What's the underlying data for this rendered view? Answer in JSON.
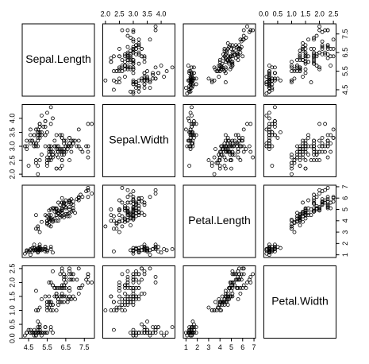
{
  "chart_data": {
    "type": "scatter-matrix",
    "color": "#000000",
    "variables": [
      {
        "name": "Sepal.Length",
        "lim": [
          4.156,
          8.044
        ],
        "ticks": [
          {
            "value": 4.5,
            "label": "4.5"
          },
          {
            "value": 5.5,
            "label": "5.5"
          },
          {
            "value": 6.5,
            "label": "6.5"
          },
          {
            "value": 7.5,
            "label": "7.5"
          }
        ],
        "values": [
          5.1,
          4.9,
          4.7,
          4.6,
          5.0,
          5.4,
          4.6,
          5.0,
          4.4,
          4.9,
          5.4,
          4.8,
          4.8,
          4.3,
          5.8,
          5.7,
          5.4,
          5.1,
          5.7,
          5.1,
          5.4,
          5.1,
          4.6,
          5.1,
          4.8,
          5.0,
          5.0,
          5.2,
          5.2,
          4.7,
          4.8,
          5.4,
          5.2,
          5.5,
          4.9,
          5.0,
          5.5,
          4.9,
          4.4,
          5.1,
          5.0,
          4.5,
          4.4,
          5.0,
          5.1,
          4.8,
          5.1,
          4.6,
          5.3,
          5.0,
          7.0,
          6.4,
          6.9,
          5.5,
          6.5,
          5.7,
          6.3,
          4.9,
          6.6,
          5.2,
          5.0,
          5.9,
          6.0,
          6.1,
          5.6,
          6.7,
          5.6,
          5.8,
          6.2,
          5.6,
          5.9,
          6.1,
          6.3,
          6.1,
          6.4,
          6.6,
          6.8,
          6.7,
          6.0,
          5.7,
          5.5,
          5.5,
          5.8,
          6.0,
          5.4,
          6.0,
          6.7,
          6.3,
          5.6,
          5.5,
          5.5,
          6.1,
          5.8,
          5.0,
          5.6,
          5.7,
          5.7,
          6.2,
          5.1,
          5.7,
          6.3,
          5.8,
          7.1,
          6.3,
          6.5,
          7.6,
          4.9,
          7.3,
          6.7,
          7.2,
          6.5,
          6.4,
          6.8,
          5.7,
          5.8,
          6.4,
          6.5,
          7.7,
          7.7,
          6.0,
          6.9,
          5.6,
          7.7,
          6.3,
          6.7,
          7.2,
          6.2,
          6.1,
          6.4,
          7.2,
          7.4,
          7.9,
          6.4,
          6.3,
          6.1,
          7.7,
          6.3,
          6.4,
          6.0,
          6.9,
          6.7,
          6.9,
          5.8,
          6.8,
          6.7,
          6.7,
          6.3,
          6.5,
          6.2,
          5.9
        ]
      },
      {
        "name": "Sepal.Width",
        "lim": [
          1.904,
          4.496
        ],
        "ticks": [
          {
            "value": 2,
            "label": "2.0"
          },
          2.5,
          {
            "value": 3,
            "label": "3.0"
          },
          3.5,
          {
            "value": 4,
            "label": "4.0"
          }
        ],
        "values": [
          3.5,
          3.0,
          3.2,
          3.1,
          3.6,
          3.9,
          3.4,
          3.4,
          2.9,
          3.1,
          3.7,
          3.4,
          3.0,
          3.0,
          4.0,
          4.4,
          3.9,
          3.5,
          3.8,
          3.8,
          3.4,
          3.7,
          3.6,
          3.3,
          3.4,
          3.0,
          3.4,
          3.5,
          3.4,
          3.2,
          3.1,
          3.4,
          4.1,
          4.2,
          3.1,
          3.2,
          3.5,
          3.6,
          3.0,
          3.4,
          3.5,
          2.3,
          3.2,
          3.5,
          3.8,
          3.0,
          3.8,
          3.2,
          3.7,
          3.3,
          3.2,
          3.2,
          3.1,
          2.3,
          2.8,
          2.8,
          3.3,
          2.4,
          2.9,
          2.7,
          2.0,
          3.0,
          2.2,
          2.9,
          2.9,
          3.1,
          3.0,
          2.7,
          2.2,
          2.5,
          3.2,
          2.8,
          2.5,
          2.8,
          2.9,
          3.0,
          2.8,
          3.0,
          2.9,
          2.6,
          2.4,
          2.4,
          2.7,
          2.7,
          3.0,
          3.4,
          3.1,
          2.3,
          3.0,
          2.5,
          2.6,
          3.0,
          2.6,
          2.3,
          2.7,
          3.0,
          2.9,
          2.9,
          2.5,
          2.8,
          3.3,
          2.7,
          3.0,
          2.9,
          3.0,
          3.0,
          2.5,
          2.9,
          2.5,
          3.6,
          3.2,
          2.7,
          3.0,
          2.5,
          2.8,
          3.2,
          3.0,
          3.8,
          2.6,
          2.2,
          3.2,
          2.8,
          2.8,
          2.7,
          3.3,
          3.2,
          2.8,
          3.0,
          2.8,
          3.0,
          2.8,
          3.8,
          2.8,
          2.8,
          2.6,
          3.0,
          3.4,
          3.1,
          3.0,
          3.1,
          3.1,
          3.1,
          2.7,
          3.2,
          3.3,
          3.0,
          2.5,
          3.0,
          3.4,
          3.0
        ]
      },
      {
        "name": "Petal.Length",
        "lim": [
          0.764,
          7.136
        ],
        "ticks": [
          1,
          2,
          3,
          4,
          5,
          6,
          7
        ],
        "values": [
          1.4,
          1.4,
          1.3,
          1.5,
          1.4,
          1.7,
          1.4,
          1.5,
          1.4,
          1.5,
          1.5,
          1.6,
          1.4,
          1.1,
          1.2,
          1.5,
          1.3,
          1.4,
          1.7,
          1.5,
          1.7,
          1.5,
          1.0,
          1.7,
          1.9,
          1.6,
          1.6,
          1.5,
          1.4,
          1.6,
          1.6,
          1.5,
          1.5,
          1.4,
          1.5,
          1.2,
          1.3,
          1.4,
          1.3,
          1.5,
          1.3,
          1.3,
          1.3,
          1.6,
          1.9,
          1.4,
          1.6,
          1.4,
          1.5,
          1.4,
          4.7,
          4.5,
          4.9,
          4.0,
          4.6,
          4.5,
          4.7,
          3.3,
          4.6,
          3.9,
          3.5,
          4.2,
          4.0,
          4.7,
          3.6,
          4.4,
          4.5,
          4.1,
          4.5,
          3.9,
          4.8,
          4.0,
          4.9,
          4.7,
          4.3,
          4.4,
          4.8,
          5.0,
          4.5,
          3.5,
          3.8,
          3.7,
          3.9,
          5.1,
          4.5,
          4.5,
          4.7,
          4.4,
          4.1,
          4.0,
          4.4,
          4.6,
          4.0,
          3.3,
          4.2,
          4.2,
          4.2,
          4.3,
          3.0,
          4.1,
          6.0,
          5.1,
          5.9,
          5.6,
          5.8,
          6.6,
          4.5,
          6.3,
          5.8,
          6.1,
          5.1,
          5.3,
          5.5,
          5.0,
          5.1,
          5.3,
          5.5,
          6.7,
          6.9,
          5.0,
          5.7,
          4.9,
          6.7,
          4.9,
          5.7,
          6.0,
          4.8,
          4.9,
          5.6,
          5.8,
          6.1,
          6.4,
          5.6,
          5.1,
          5.6,
          6.1,
          5.6,
          5.5,
          4.8,
          5.4,
          5.6,
          5.1,
          5.1,
          5.9,
          5.7,
          5.2,
          5.0,
          5.2,
          5.4,
          5.1
        ]
      },
      {
        "name": "Petal.Width",
        "lim": [
          0.004,
          2.596
        ],
        "ticks": [
          {
            "value": 0,
            "label": "0.0"
          },
          0.5,
          {
            "value": 1,
            "label": "1.0"
          },
          1.5,
          {
            "value": 2,
            "label": "2.0"
          },
          2.5
        ],
        "values": [
          0.2,
          0.2,
          0.2,
          0.2,
          0.2,
          0.4,
          0.3,
          0.2,
          0.2,
          0.1,
          0.2,
          0.2,
          0.1,
          0.1,
          0.2,
          0.4,
          0.4,
          0.3,
          0.3,
          0.3,
          0.2,
          0.4,
          0.2,
          0.5,
          0.2,
          0.2,
          0.4,
          0.2,
          0.2,
          0.2,
          0.2,
          0.4,
          0.1,
          0.2,
          0.2,
          0.2,
          0.2,
          0.1,
          0.2,
          0.2,
          0.3,
          0.3,
          0.2,
          0.6,
          0.4,
          0.3,
          0.2,
          0.2,
          0.2,
          0.2,
          1.4,
          1.5,
          1.5,
          1.3,
          1.5,
          1.3,
          1.6,
          1.0,
          1.3,
          1.4,
          1.0,
          1.5,
          1.0,
          1.4,
          1.3,
          1.4,
          1.5,
          1.0,
          1.5,
          1.1,
          1.8,
          1.3,
          1.5,
          1.2,
          1.3,
          1.4,
          1.4,
          1.7,
          1.5,
          1.0,
          1.1,
          1.0,
          1.2,
          1.6,
          1.5,
          1.6,
          1.5,
          1.3,
          1.3,
          1.3,
          1.2,
          1.4,
          1.2,
          1.0,
          1.3,
          1.2,
          1.3,
          1.3,
          1.1,
          1.3,
          2.5,
          1.9,
          2.1,
          1.8,
          2.2,
          2.1,
          1.7,
          1.8,
          1.8,
          2.5,
          2.0,
          1.9,
          2.1,
          2.0,
          2.4,
          2.3,
          1.8,
          2.2,
          2.3,
          1.5,
          2.3,
          2.0,
          2.0,
          1.8,
          2.1,
          1.8,
          1.8,
          1.8,
          2.1,
          1.6,
          1.9,
          2.0,
          2.2,
          1.5,
          1.4,
          2.3,
          2.4,
          1.8,
          1.8,
          2.1,
          2.4,
          2.3,
          1.9,
          2.3,
          2.5,
          2.3,
          1.9,
          2.0,
          2.3,
          1.8
        ]
      }
    ]
  }
}
